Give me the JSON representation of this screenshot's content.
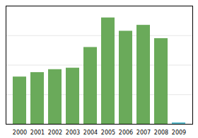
{
  "chart_data": {
    "type": "bar",
    "categories": [
      "2000",
      "2001",
      "2002",
      "2003",
      "2004",
      "2005",
      "2006",
      "2007",
      "2008",
      "2009"
    ],
    "values": [
      32,
      35,
      37,
      38,
      52,
      72,
      63,
      67,
      58,
      1
    ],
    "colors": [
      "#6aaa5a",
      "#6aaa5a",
      "#6aaa5a",
      "#6aaa5a",
      "#6aaa5a",
      "#6aaa5a",
      "#6aaa5a",
      "#6aaa5a",
      "#6aaa5a",
      "#5bbccc"
    ],
    "ylim": [
      0,
      80
    ],
    "yticks": [
      20,
      40,
      60,
      80
    ],
    "grid": true,
    "tick_labels": "x"
  }
}
